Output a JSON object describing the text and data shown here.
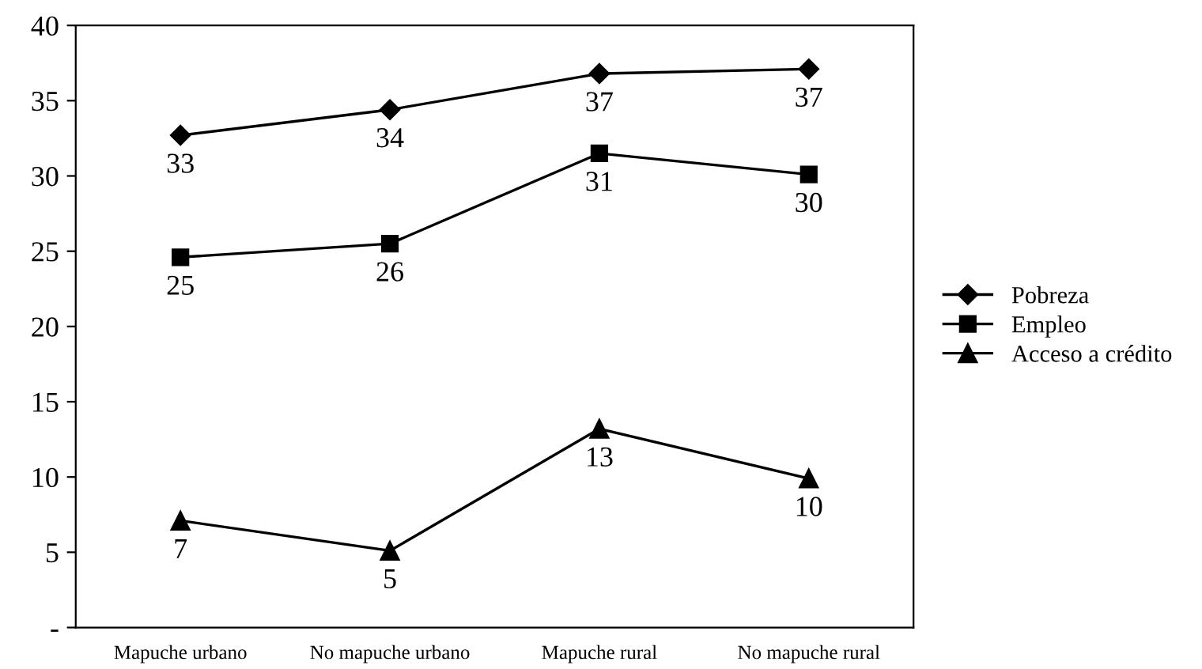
{
  "chart_data": {
    "type": "line",
    "categories": [
      "Mapuche urbano",
      "No mapuche urbano",
      "Mapuche rural",
      "No mapuche rural"
    ],
    "series": [
      {
        "name": "Pobreza",
        "color": "#000000",
        "marker": "diamond",
        "values": [
          32.7,
          34.4,
          36.8,
          37.1
        ],
        "value_labels": [
          "33",
          "34",
          "37",
          "37"
        ]
      },
      {
        "name": "Empleo",
        "color": "#000000",
        "marker": "square",
        "values": [
          24.6,
          25.5,
          31.5,
          30.1
        ],
        "value_labels": [
          "25",
          "26",
          "31",
          "30"
        ]
      },
      {
        "name": "Acceso a crédito",
        "color": "#000000",
        "marker": "triangle",
        "values": [
          7.1,
          5.1,
          13.2,
          9.9
        ],
        "value_labels": [
          "7",
          "5",
          "13",
          "10"
        ]
      }
    ],
    "ylim": [
      0,
      40
    ],
    "yticks": [
      {
        "value": 0,
        "label": "-"
      },
      5,
      10,
      15,
      20,
      25,
      30,
      35,
      40
    ],
    "grid": false,
    "legend": "right",
    "line_style": "solid"
  }
}
